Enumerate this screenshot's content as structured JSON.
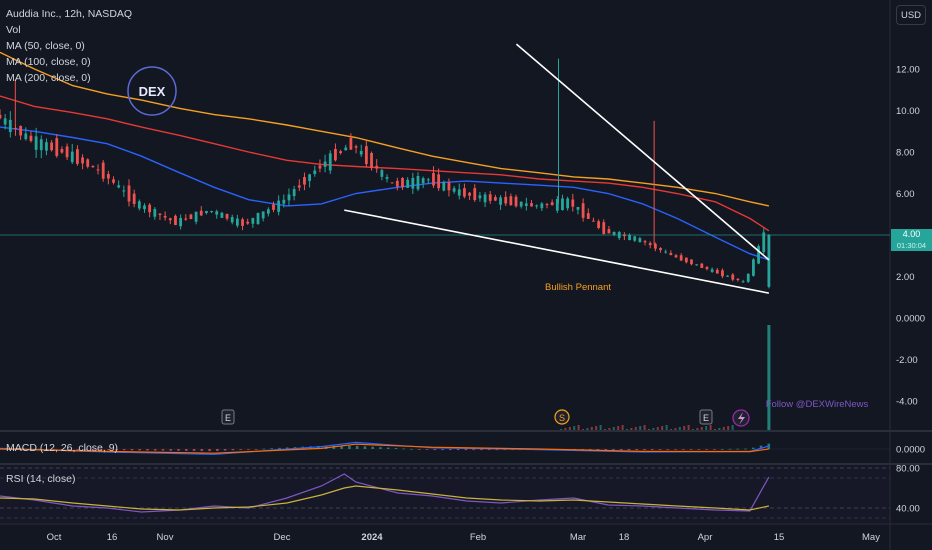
{
  "header": {
    "symbol_line": "Auddia Inc., 12h, NASDAQ",
    "indicators": [
      "Vol",
      "MA (50, close, 0)",
      "MA (100, close, 0)",
      "MA (200, close, 0)"
    ],
    "macd_label": "MACD (12, 26, close, 9)",
    "rsi_label": "RSI (14, close)",
    "currency": "USD"
  },
  "annotations": {
    "pattern": "Bullish Pennant",
    "follow": "Follow @DEXWireNews",
    "logo": "DEX"
  },
  "event_markers": [
    "E",
    "S",
    "E"
  ],
  "last_price": {
    "value": "4.00",
    "countdown": "01:30:04"
  },
  "colors": {
    "background": "#131722",
    "up": "#26a69a",
    "down": "#ef5350",
    "ma50": "#2962ff",
    "ma100": "#e53935",
    "ma200": "#f6a020",
    "rsi": "#7e57c2",
    "trendline": "#ffffff",
    "pattern_label": "#f6a020",
    "follow_text": "#7e57c2"
  },
  "chart_data": [
    {
      "type": "line",
      "panel": "price",
      "title": "",
      "yticks": [
        "12.00",
        "10.00",
        "8.00",
        "6.00",
        "4.00",
        "2.00",
        "0.0000",
        "-2.00",
        "-4.00"
      ],
      "ylim": [
        -5,
        14
      ],
      "x": [
        "2023-09-20",
        "2023-09-29",
        "2023-10-09",
        "2023-10-18",
        "2023-10-27",
        "2023-11-06",
        "2023-11-15",
        "2023-11-24",
        "2023-12-04",
        "2023-12-13",
        "2023-12-22",
        "2024-01-02",
        "2024-01-11",
        "2024-01-20",
        "2024-01-29",
        "2024-02-08",
        "2024-02-17",
        "2024-02-26",
        "2024-03-06",
        "2024-03-15",
        "2024-03-25",
        "2024-04-03",
        "2024-04-08"
      ],
      "series": [
        {
          "key": "close",
          "values": [
            9.8,
            8.6,
            7.9,
            7.0,
            5.5,
            4.6,
            5.2,
            4.5,
            5.6,
            7.2,
            8.4,
            6.4,
            6.7,
            6.0,
            5.7,
            5.4,
            5.6,
            4.2,
            3.8,
            3.0,
            2.3,
            1.7,
            4.0
          ]
        },
        {
          "key": "ma50",
          "values": [
            9.2,
            9.0,
            8.7,
            8.4,
            7.8,
            7.0,
            6.3,
            5.7,
            5.4,
            5.5,
            6.0,
            6.3,
            6.5,
            6.6,
            6.5,
            6.4,
            6.3,
            6.0,
            5.5,
            4.8,
            3.9,
            3.1,
            2.8
          ]
        },
        {
          "key": "ma100",
          "values": [
            10.7,
            10.2,
            9.9,
            9.6,
            9.2,
            8.8,
            8.4,
            8.0,
            7.6,
            7.4,
            7.3,
            7.2,
            7.1,
            7.0,
            6.9,
            6.7,
            6.6,
            6.5,
            6.3,
            6.0,
            5.6,
            4.8,
            4.2
          ]
        },
        {
          "key": "ma200",
          "values": [
            12.8,
            12.0,
            11.2,
            10.8,
            10.5,
            10.1,
            9.8,
            9.6,
            9.3,
            9.0,
            8.7,
            8.2,
            7.8,
            7.5,
            7.2,
            7.0,
            6.8,
            6.7,
            6.5,
            6.3,
            6.0,
            5.6,
            5.4
          ]
        }
      ],
      "spikes": [
        {
          "x": "2023-09-24",
          "high": 11.5
        },
        {
          "x": "2024-02-13",
          "high": 12.5
        },
        {
          "x": "2024-03-09",
          "high": 9.5
        }
      ],
      "trendlines": [
        {
          "from": {
            "x": "2024-02-02",
            "y": 13.2
          },
          "to": {
            "x": "2024-04-08",
            "y": 2.8
          }
        },
        {
          "from": {
            "x": "2023-12-19",
            "y": 5.2
          },
          "to": {
            "x": "2024-04-08",
            "y": 1.2
          }
        }
      ],
      "horizontal_line": 4.0
    },
    {
      "type": "bar",
      "panel": "volume",
      "x": [
        "2024-04-08"
      ],
      "values": [
        1.0
      ],
      "note_values_relative": true
    },
    {
      "type": "line",
      "panel": "macd",
      "yticks": [
        "0.0000"
      ],
      "ylim": [
        -1,
        1
      ],
      "x": [
        "2023-09-20",
        "2023-10-18",
        "2023-11-15",
        "2023-12-13",
        "2023-12-22",
        "2024-01-11",
        "2024-02-08",
        "2024-03-06",
        "2024-04-03",
        "2024-04-08"
      ],
      "series": [
        {
          "key": "macd",
          "values": [
            0.05,
            -0.25,
            -0.45,
            0.2,
            0.55,
            0.1,
            -0.05,
            -0.25,
            -0.2,
            0.25
          ]
        },
        {
          "key": "signal",
          "values": [
            0.0,
            -0.2,
            -0.35,
            0.05,
            0.4,
            0.15,
            0.0,
            -0.2,
            -0.22,
            0.0
          ]
        }
      ]
    },
    {
      "type": "line",
      "panel": "rsi",
      "yticks": [
        "80.00",
        "40.00"
      ],
      "ylim": [
        25,
        90
      ],
      "x": [
        "2023-09-20",
        "2023-09-29",
        "2023-10-09",
        "2023-10-18",
        "2023-10-27",
        "2023-11-06",
        "2023-11-15",
        "2023-11-24",
        "2023-12-04",
        "2023-12-13",
        "2023-12-19",
        "2023-12-22",
        "2024-01-02",
        "2024-01-11",
        "2024-01-20",
        "2024-01-29",
        "2024-02-08",
        "2024-02-17",
        "2024-02-26",
        "2024-03-06",
        "2024-03-15",
        "2024-03-25",
        "2024-04-03",
        "2024-04-08"
      ],
      "series": [
        {
          "key": "rsi",
          "values": [
            52,
            48,
            42,
            40,
            36,
            38,
            42,
            40,
            50,
            62,
            74,
            66,
            55,
            52,
            47,
            45,
            48,
            50,
            43,
            42,
            40,
            38,
            37,
            71
          ]
        },
        {
          "key": "rsi_ma",
          "values": [
            50,
            49,
            45,
            42,
            39,
            38,
            40,
            41,
            45,
            53,
            60,
            62,
            58,
            54,
            50,
            48,
            47,
            48,
            46,
            44,
            42,
            40,
            38,
            42
          ]
        }
      ]
    }
  ],
  "x_axis": {
    "labels": [
      "Oct",
      "16",
      "Nov",
      "Dec",
      "2024",
      "Feb",
      "Mar",
      "18",
      "Apr",
      "15",
      "May"
    ]
  }
}
